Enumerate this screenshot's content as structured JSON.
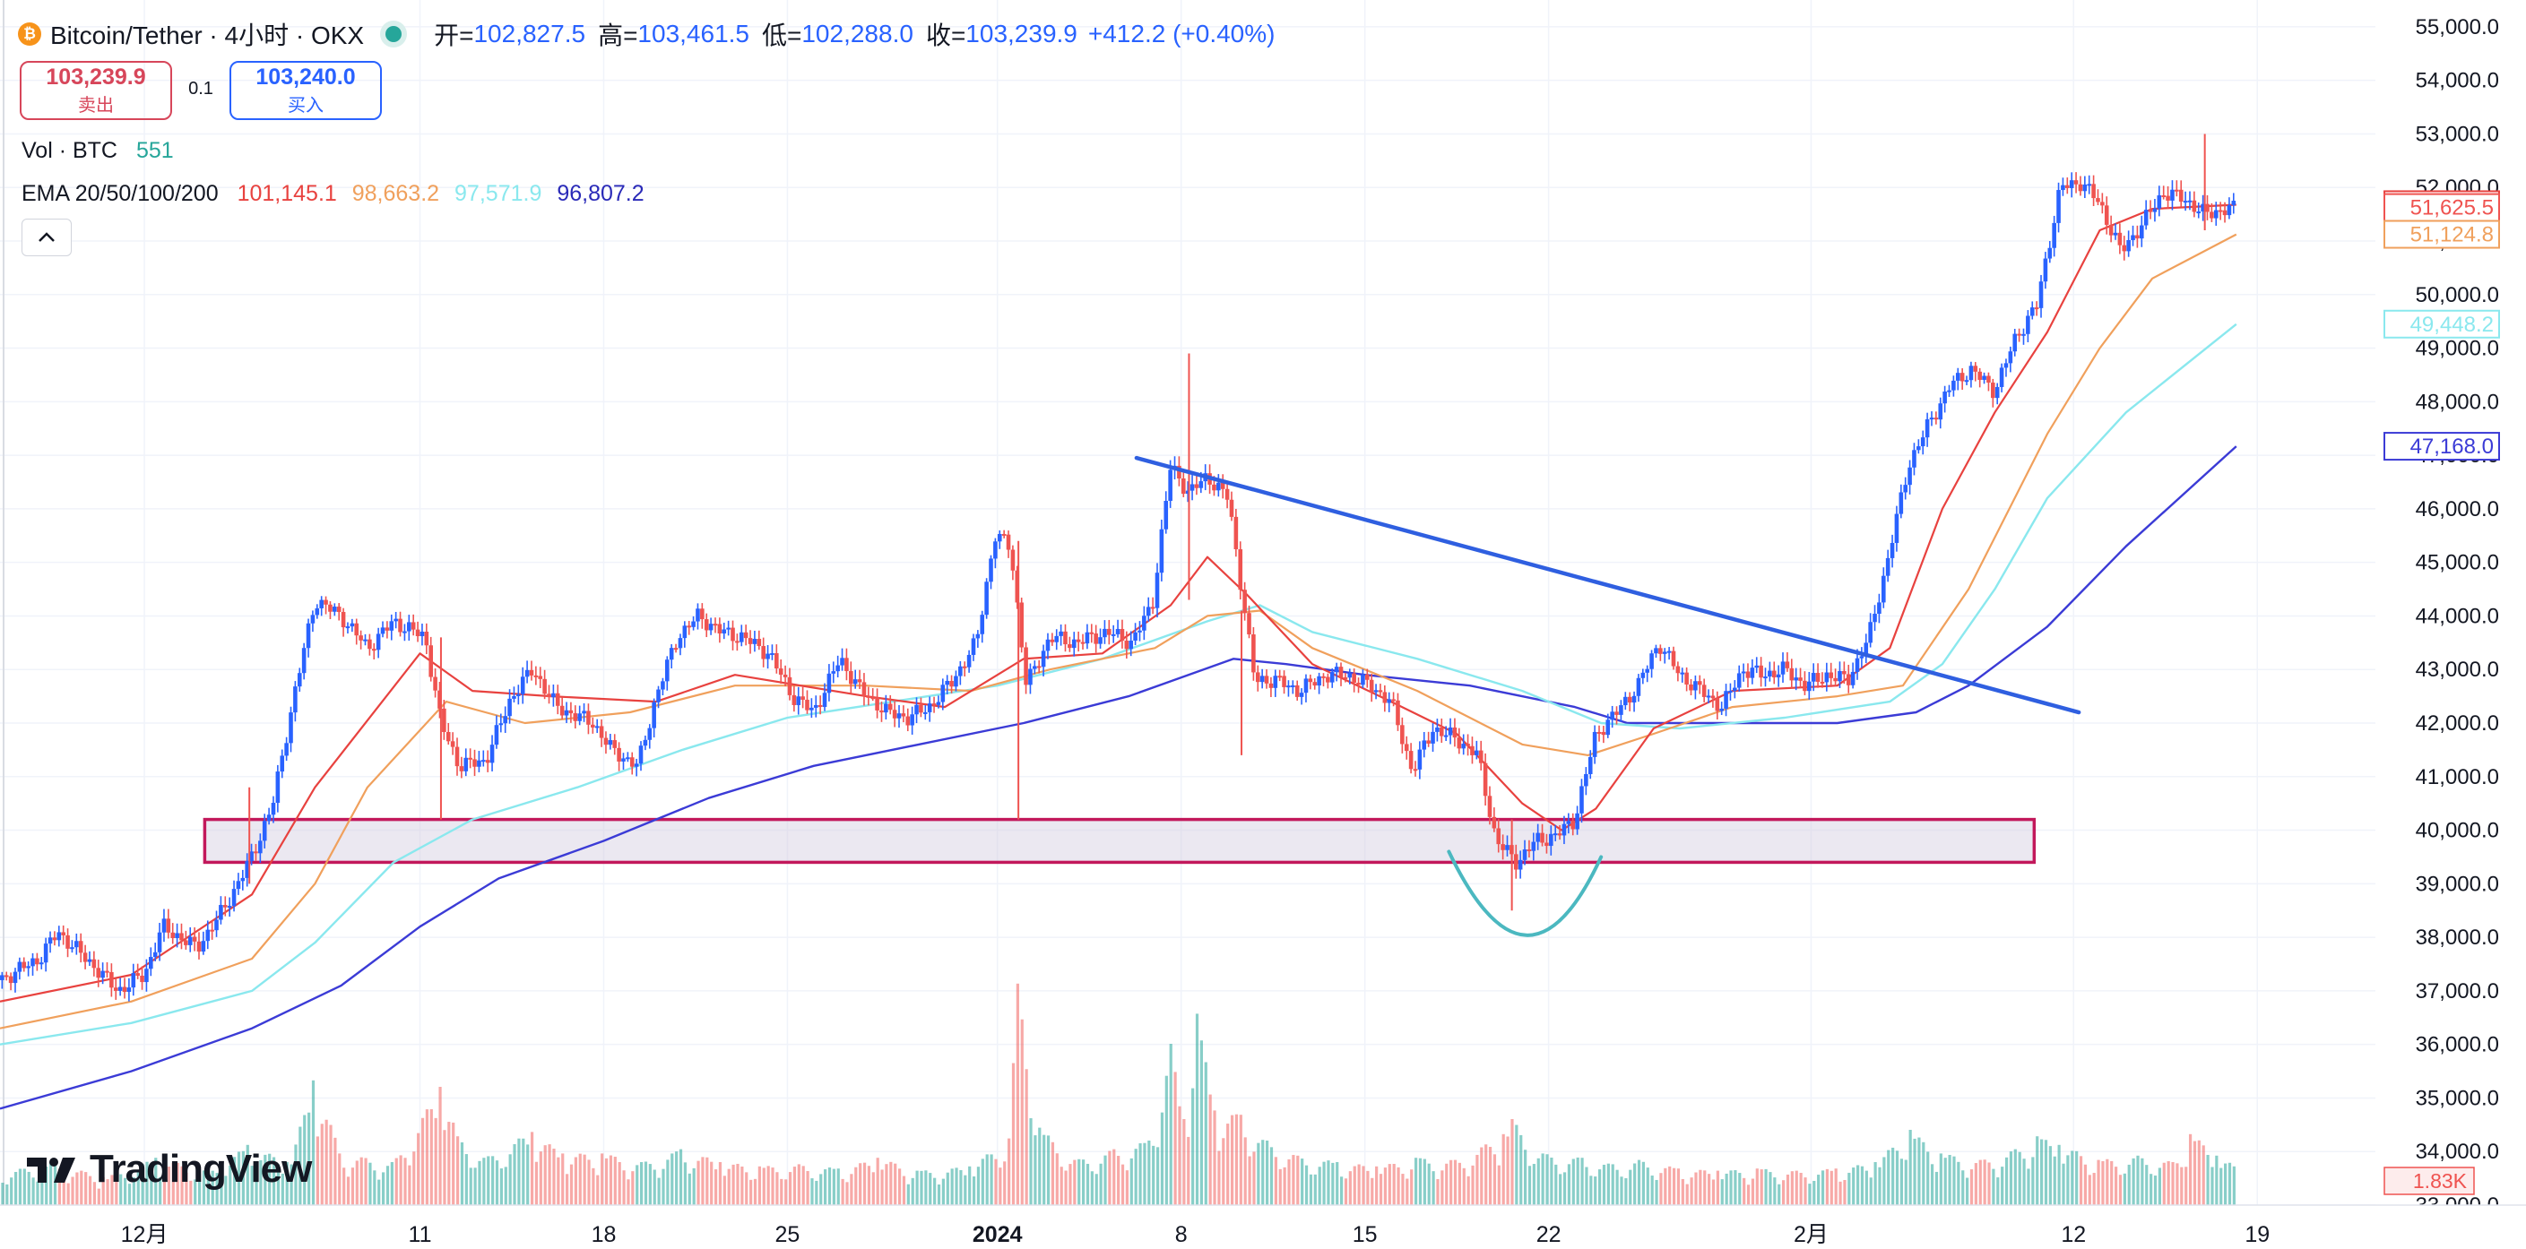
{
  "header": {
    "symbol": "Bitcoin/Tether · 4小时 · OKX",
    "open_label": "开=",
    "open_value": "102,827.5",
    "high_label": "高=",
    "high_value": "103,461.5",
    "low_label": "低=",
    "low_value": "102,288.0",
    "close_label": "收=",
    "close_value": "103,239.9",
    "change": "+412.2 (+0.40%)"
  },
  "trade": {
    "sell_price": "103,239.9",
    "sell_label": "卖出",
    "spread": "0.1",
    "buy_price": "103,240.0",
    "buy_label": "买入"
  },
  "volume_legend": {
    "label": "Vol · BTC",
    "value": "551"
  },
  "ema_legend": {
    "label": "EMA 20/50/100/200",
    "values": [
      "101,145.1",
      "98,663.2",
      "97,571.9",
      "96,807.2"
    ]
  },
  "collapse_icon": "chevron-up-icon",
  "logo_text": "TradingView",
  "colors": {
    "up": "#2962ff",
    "down": "#ef5350",
    "ema20": "#e8423f",
    "ema50": "#f0a05c",
    "ema100": "#8ae8ee",
    "ema200": "#3b3bd6",
    "trendline": "#2f5fe0",
    "support_zone": "#c2185b",
    "cup": "#4bb8c0"
  },
  "chart_data": {
    "type": "candlestick",
    "y_axis_ticks": [
      "55,000.0",
      "54,000.0",
      "53,000.0",
      "52,000.0",
      "51,000.0",
      "50,000.0",
      "49,000.0",
      "48,000.0",
      "47,000.0",
      "46,000.0",
      "45,000.0",
      "44,000.0",
      "43,000.0",
      "42,000.0",
      "41,000.0",
      "40,000.0",
      "39,000.0",
      "38,000.0",
      "37,000.0",
      "36,000.0",
      "35,000.0",
      "34,000.0",
      "33,000.0"
    ],
    "ylim": [
      33000,
      55500
    ],
    "x_axis_ticks": [
      "12月",
      "11",
      "18",
      "25",
      "2024",
      "8",
      "15",
      "22",
      "2月",
      "12",
      "19"
    ],
    "x_tick_days": [
      5.5,
      16,
      23,
      30,
      38,
      45,
      52,
      59,
      69,
      79,
      86
    ],
    "x_range_days": [
      0,
      90.5
    ],
    "price_labels": [
      {
        "text": "51,678.6",
        "value": 51678.6,
        "color": "#e8423f"
      },
      {
        "text": "51,625.5",
        "value": 51625.5,
        "color": "#ef5350"
      },
      {
        "text": "51,124.8",
        "value": 51124.8,
        "color": "#f0a05c"
      },
      {
        "text": "49,448.2",
        "value": 49448.2,
        "color": "#8ae8ee"
      },
      {
        "text": "47,168.0",
        "value": 47168.0,
        "color": "#3b3bd6"
      }
    ],
    "volume_label": "1.83K",
    "price_path": [
      [
        0,
        37200
      ],
      [
        1.5,
        37600
      ],
      [
        2.2,
        38100
      ],
      [
        3.5,
        37500
      ],
      [
        4.5,
        37000
      ],
      [
        5.5,
        37300
      ],
      [
        6.2,
        38200
      ],
      [
        7.5,
        37800
      ],
      [
        8.5,
        38500
      ],
      [
        9.6,
        39500
      ],
      [
        10.4,
        40500
      ],
      [
        11.2,
        42500
      ],
      [
        12,
        44300
      ],
      [
        13,
        44000
      ],
      [
        14,
        43400
      ],
      [
        15,
        43900
      ],
      [
        16.2,
        43600
      ],
      [
        16.8,
        42000
      ],
      [
        17.5,
        41200
      ],
      [
        18.5,
        41300
      ],
      [
        19.5,
        42500
      ],
      [
        20.3,
        43000
      ],
      [
        21.2,
        42300
      ],
      [
        22.6,
        42000
      ],
      [
        23.3,
        41500
      ],
      [
        24.3,
        41200
      ],
      [
        25,
        42500
      ],
      [
        25.8,
        43600
      ],
      [
        26.6,
        44000
      ],
      [
        27.5,
        43700
      ],
      [
        28.3,
        43600
      ],
      [
        29.3,
        43300
      ],
      [
        30.2,
        42500
      ],
      [
        31,
        42200
      ],
      [
        32,
        43200
      ],
      [
        32.8,
        42600
      ],
      [
        33.8,
        42200
      ],
      [
        34.6,
        42100
      ],
      [
        35.4,
        42300
      ],
      [
        36.3,
        42800
      ],
      [
        37.2,
        43500
      ],
      [
        37.9,
        45500
      ],
      [
        38.5,
        45300
      ],
      [
        39.1,
        42700
      ],
      [
        40,
        43600
      ],
      [
        41,
        43500
      ],
      [
        42.2,
        43700
      ],
      [
        43.1,
        43500
      ],
      [
        43.9,
        44200
      ],
      [
        44.6,
        46800
      ],
      [
        45.3,
        46300
      ],
      [
        46,
        46600
      ],
      [
        46.8,
        46200
      ],
      [
        47.3,
        44500
      ],
      [
        47.8,
        42800
      ],
      [
        48.6,
        42800
      ],
      [
        49.5,
        42600
      ],
      [
        50.5,
        42900
      ],
      [
        51.3,
        42900
      ],
      [
        52.2,
        42700
      ],
      [
        53,
        42400
      ],
      [
        53.8,
        41100
      ],
      [
        54.6,
        41900
      ],
      [
        55.5,
        41700
      ],
      [
        56.3,
        41400
      ],
      [
        57,
        39800
      ],
      [
        57.8,
        39400
      ],
      [
        58.5,
        39800
      ],
      [
        59.3,
        39900
      ],
      [
        60,
        40200
      ],
      [
        60.8,
        41800
      ],
      [
        61.6,
        42200
      ],
      [
        62.4,
        42700
      ],
      [
        63.2,
        43500
      ],
      [
        64,
        42900
      ],
      [
        64.8,
        42600
      ],
      [
        65.6,
        42300
      ],
      [
        66.4,
        43000
      ],
      [
        67.2,
        42900
      ],
      [
        68,
        43000
      ],
      [
        68.8,
        42700
      ],
      [
        69.6,
        42900
      ],
      [
        70.4,
        42800
      ],
      [
        71.2,
        43600
      ],
      [
        71.9,
        45000
      ],
      [
        72.7,
        46800
      ],
      [
        73.5,
        47600
      ],
      [
        74.3,
        48300
      ],
      [
        75.1,
        48600
      ],
      [
        76,
        48200
      ],
      [
        76.8,
        49200
      ],
      [
        77.6,
        49800
      ],
      [
        78.5,
        52000
      ],
      [
        79.3,
        52100
      ],
      [
        80,
        51700
      ],
      [
        80.8,
        50800
      ],
      [
        81.6,
        51300
      ],
      [
        82.4,
        51900
      ],
      [
        83.2,
        51800
      ],
      [
        84,
        51500
      ],
      [
        84.8,
        51600
      ],
      [
        85.2,
        51600
      ]
    ],
    "highlights": [
      {
        "day": 9.5,
        "high": 40800,
        "low": 39000
      },
      {
        "day": 16.8,
        "high": 43600,
        "low": 40200
      },
      {
        "day": 38.8,
        "high": 45400,
        "low": 40200
      },
      {
        "day": 45.3,
        "high": 48900,
        "low": 44300
      },
      {
        "day": 47.3,
        "high": 44100,
        "low": 41400
      },
      {
        "day": 57.6,
        "high": 40200,
        "low": 38500
      },
      {
        "day": 84,
        "high": 53000,
        "low": 51200
      }
    ],
    "ema20": [
      [
        0,
        36800
      ],
      [
        5,
        37300
      ],
      [
        9.6,
        38800
      ],
      [
        12,
        40800
      ],
      [
        16,
        43300
      ],
      [
        18,
        42600
      ],
      [
        21,
        42500
      ],
      [
        25,
        42400
      ],
      [
        28,
        42900
      ],
      [
        33,
        42500
      ],
      [
        36,
        42300
      ],
      [
        39,
        43200
      ],
      [
        42,
        43300
      ],
      [
        44.6,
        44200
      ],
      [
        46,
        45100
      ],
      [
        47.5,
        44400
      ],
      [
        50,
        43100
      ],
      [
        53,
        42400
      ],
      [
        55.5,
        41800
      ],
      [
        58,
        40500
      ],
      [
        59.5,
        40000
      ],
      [
        60.8,
        40400
      ],
      [
        63,
        41900
      ],
      [
        66,
        42600
      ],
      [
        70,
        42700
      ],
      [
        72,
        43400
      ],
      [
        74,
        46000
      ],
      [
        76,
        47800
      ],
      [
        78,
        49300
      ],
      [
        80,
        51200
      ],
      [
        82,
        51600
      ],
      [
        85.2,
        51678
      ]
    ],
    "ema50": [
      [
        0,
        36300
      ],
      [
        5,
        36800
      ],
      [
        9.6,
        37600
      ],
      [
        12,
        39000
      ],
      [
        14,
        40800
      ],
      [
        17,
        42400
      ],
      [
        20,
        42000
      ],
      [
        24,
        42200
      ],
      [
        28,
        42700
      ],
      [
        33,
        42700
      ],
      [
        37,
        42600
      ],
      [
        40,
        43000
      ],
      [
        44,
        43400
      ],
      [
        46,
        44000
      ],
      [
        48,
        44100
      ],
      [
        50,
        43400
      ],
      [
        54,
        42600
      ],
      [
        58,
        41600
      ],
      [
        60.5,
        41400
      ],
      [
        63,
        41800
      ],
      [
        66,
        42300
      ],
      [
        70,
        42500
      ],
      [
        72.5,
        42700
      ],
      [
        75,
        44500
      ],
      [
        78,
        47400
      ],
      [
        80,
        49000
      ],
      [
        82,
        50300
      ],
      [
        85.2,
        51124
      ]
    ],
    "ema100": [
      [
        0,
        36000
      ],
      [
        5,
        36400
      ],
      [
        9.6,
        37000
      ],
      [
        12,
        37900
      ],
      [
        15,
        39400
      ],
      [
        18,
        40200
      ],
      [
        22,
        40800
      ],
      [
        26,
        41500
      ],
      [
        30,
        42100
      ],
      [
        34,
        42400
      ],
      [
        38,
        42700
      ],
      [
        42,
        43200
      ],
      [
        46,
        43900
      ],
      [
        48,
        44200
      ],
      [
        50,
        43700
      ],
      [
        54,
        43200
      ],
      [
        58,
        42600
      ],
      [
        61,
        42000
      ],
      [
        64,
        41900
      ],
      [
        68,
        42100
      ],
      [
        72,
        42400
      ],
      [
        74,
        43100
      ],
      [
        76,
        44500
      ],
      [
        78,
        46200
      ],
      [
        81,
        47800
      ],
      [
        85.2,
        49448
      ]
    ],
    "ema200": [
      [
        0,
        34800
      ],
      [
        5,
        35500
      ],
      [
        9.6,
        36300
      ],
      [
        13,
        37100
      ],
      [
        16,
        38200
      ],
      [
        19,
        39100
      ],
      [
        23,
        39800
      ],
      [
        27,
        40600
      ],
      [
        31,
        41200
      ],
      [
        35,
        41600
      ],
      [
        39,
        42000
      ],
      [
        43,
        42500
      ],
      [
        47,
        43200
      ],
      [
        49,
        43100
      ],
      [
        52,
        42900
      ],
      [
        56,
        42700
      ],
      [
        60,
        42300
      ],
      [
        62,
        42000
      ],
      [
        66,
        42000
      ],
      [
        70,
        42000
      ],
      [
        73,
        42200
      ],
      [
        75,
        42700
      ],
      [
        78,
        43800
      ],
      [
        81,
        45300
      ],
      [
        85.2,
        47168
      ]
    ],
    "volume": [
      [
        0,
        1.5
      ],
      [
        2,
        2
      ],
      [
        4,
        1.3
      ],
      [
        6,
        2.2
      ],
      [
        8,
        1.6
      ],
      [
        9.5,
        2.8
      ],
      [
        11,
        2
      ],
      [
        12,
        5.8
      ],
      [
        13,
        2.4
      ],
      [
        15,
        2
      ],
      [
        16.8,
        5.5
      ],
      [
        17.5,
        3.2
      ],
      [
        18.5,
        2.2
      ],
      [
        20.2,
        3.4
      ],
      [
        21.5,
        2.4
      ],
      [
        23,
        2.4
      ],
      [
        24.5,
        2
      ],
      [
        26,
        2.6
      ],
      [
        27.5,
        2
      ],
      [
        29,
        1.8
      ],
      [
        30.5,
        1.9
      ],
      [
        32,
        1.7
      ],
      [
        33.5,
        2.2
      ],
      [
        35,
        1.6
      ],
      [
        37,
        1.8
      ],
      [
        38.4,
        3.1
      ],
      [
        38.8,
        10.3
      ],
      [
        39.6,
        3.6
      ],
      [
        41,
        2.1
      ],
      [
        42.5,
        2.6
      ],
      [
        43.8,
        3
      ],
      [
        44.6,
        7.5
      ],
      [
        45.1,
        4
      ],
      [
        45.6,
        8.9
      ],
      [
        46.3,
        4.4
      ],
      [
        47.3,
        4.2
      ],
      [
        48.2,
        3
      ],
      [
        49.5,
        2.3
      ],
      [
        51,
        2
      ],
      [
        52.5,
        1.8
      ],
      [
        54,
        2.2
      ],
      [
        55.5,
        2.1
      ],
      [
        57.3,
        3.3
      ],
      [
        57.6,
        4
      ],
      [
        58.7,
        2.4
      ],
      [
        60.2,
        2.2
      ],
      [
        61.4,
        1.9
      ],
      [
        62.5,
        2.1
      ],
      [
        64,
        1.7
      ],
      [
        65.5,
        1.6
      ],
      [
        67,
        1.7
      ],
      [
        68.5,
        1.6
      ],
      [
        70,
        1.7
      ],
      [
        71.5,
        2
      ],
      [
        72.7,
        3.5
      ],
      [
        74,
        2.4
      ],
      [
        75.5,
        2.1
      ],
      [
        76.8,
        2.6
      ],
      [
        77.6,
        3.2
      ],
      [
        78.5,
        2.8
      ],
      [
        80,
        2.1
      ],
      [
        81.5,
        2.3
      ],
      [
        82.8,
        2
      ],
      [
        83.5,
        3.3
      ],
      [
        84.5,
        2.3
      ],
      [
        85.2,
        1.8
      ]
    ],
    "annotations": {
      "trendline": [
        [
          43.3,
          46950
        ],
        [
          79.2,
          42200
        ]
      ],
      "support_zone": [
        39400,
        40200
      ],
      "support_zone_days": [
        7.8,
        77.5
      ],
      "cup": {
        "start": [
          55.2,
          39600
        ],
        "bottom": [
          58.2,
          38200
        ],
        "end": [
          61,
          39500
        ]
      }
    }
  }
}
